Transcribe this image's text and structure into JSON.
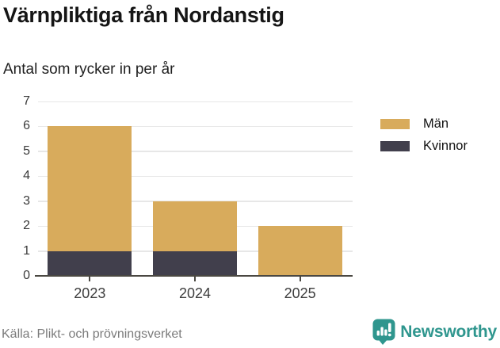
{
  "header": {
    "title": "Värnpliktiga från Nordanstig",
    "subtitle": "Antal som rycker in per år"
  },
  "chart_data": {
    "type": "bar",
    "stacked": true,
    "title": "Värnpliktiga från Nordanstig",
    "subtitle": "Antal som rycker in per år",
    "categories": [
      "2023",
      "2024",
      "2025"
    ],
    "series": [
      {
        "name": "Män",
        "values": [
          5,
          2,
          2
        ],
        "color": "#d8ab5c"
      },
      {
        "name": "Kvinnor",
        "values": [
          1,
          1,
          0
        ],
        "color": "#413f4c"
      }
    ],
    "stack_bottom_to_top": [
      "Kvinnor",
      "Män"
    ],
    "totals": [
      6,
      3,
      2
    ],
    "xlabel": "",
    "ylabel": "",
    "ylim": [
      0,
      7
    ],
    "yticks": [
      0,
      1,
      2,
      3,
      4,
      5,
      6,
      7
    ],
    "grid": true,
    "legend_position": "right"
  },
  "legend": {
    "items": [
      {
        "label": "Män",
        "color": "#d8ab5c"
      },
      {
        "label": "Kvinnor",
        "color": "#413f4c"
      }
    ]
  },
  "footer": {
    "source": "Källa: Plikt- och prövningsverket",
    "brand": "Newsworthy",
    "brand_color": "#2f968e",
    "brand_icon": "bar-chart-speech-bubble-icon"
  },
  "colors": {
    "axis": "#4a4842",
    "gridline": "#e7e7e7",
    "tick_label": "#3a3a3a"
  }
}
